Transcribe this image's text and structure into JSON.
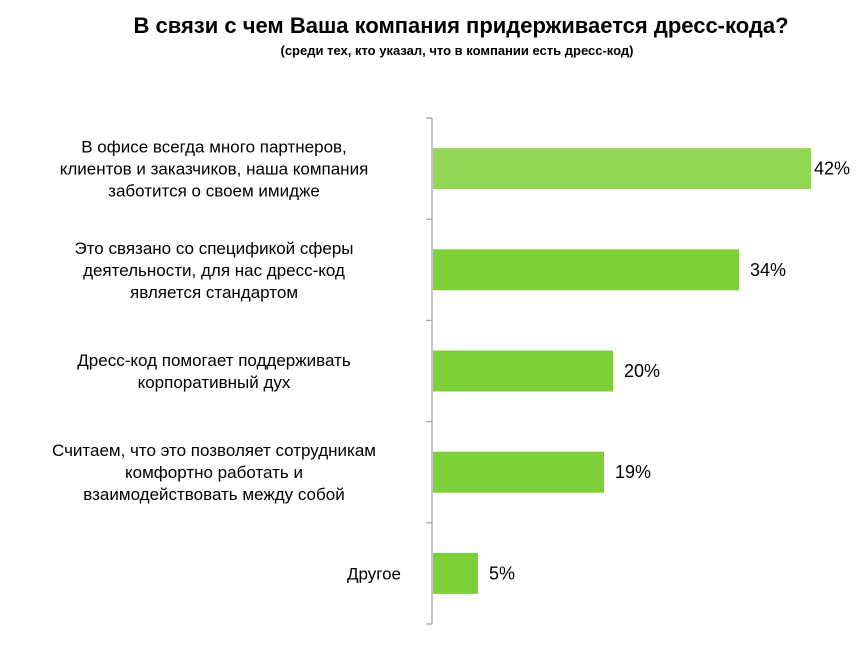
{
  "chart_data": {
    "type": "bar",
    "orientation": "horizontal",
    "title": "В связи с чем Ваша компания придерживается дресс-кода?",
    "subtitle": "(среди тех, кто указал, что в компании есть дресс-код)",
    "categories": [
      [
        "В офисе всегда много партнеров,",
        "клиентов и заказчиков, наша компания",
        "заботится о своем имидже"
      ],
      [
        "Это связано со спецификой сферы",
        "деятельности, для нас дресс-код",
        "является стандартом"
      ],
      [
        "Дресс-код помогает поддерживать",
        "корпоративный дух"
      ],
      [
        "Считаем, что это позволяет сотрудникам",
        "комфортно работать и",
        "взаимодействовать между собой"
      ],
      [
        "Другое"
      ]
    ],
    "values": [
      42,
      34,
      20,
      19,
      5
    ],
    "value_labels": [
      "42%",
      "34%",
      "20%",
      "19%",
      "5%"
    ],
    "xlim": [
      0,
      42
    ],
    "grid": false,
    "colors": {
      "bar": "#7ED03A",
      "bar_top": "#93D654",
      "axis": "#A6A6A6"
    }
  }
}
